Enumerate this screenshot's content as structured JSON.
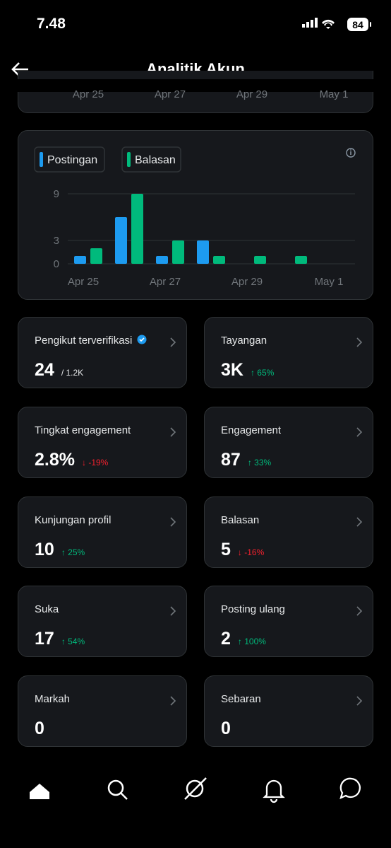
{
  "status_bar": {
    "time": "7.48",
    "battery": "84"
  },
  "header": {
    "title": "Analitik Akun"
  },
  "top_card": {
    "labels": [
      "Apr 25",
      "Apr 27",
      "Apr 29",
      "May 1"
    ]
  },
  "chart_data": {
    "type": "bar",
    "categories": [
      "Apr 25",
      null,
      "Apr 27",
      null,
      "Apr 29",
      null,
      "May 1"
    ],
    "series": [
      {
        "name": "Postingan",
        "color": "#1d9bf0",
        "values": [
          1,
          6,
          1,
          3,
          0,
          0,
          0
        ]
      },
      {
        "name": "Balasan",
        "color": "#00ba7c",
        "values": [
          2,
          9,
          3,
          1,
          1,
          1,
          0
        ]
      }
    ],
    "ylim": [
      0,
      9
    ],
    "yticks": [
      0,
      3,
      9
    ],
    "grid": true
  },
  "metrics": [
    {
      "label": "Pengikut terverifikasi",
      "value": "24",
      "extra": "/ 1.2K"
    },
    {
      "label": "Tayangan",
      "value": "3K",
      "change": "↑ 65%",
      "trend": "up"
    },
    {
      "label": "Tingkat engagement",
      "value": "2.8%",
      "change": "↓ -19%",
      "trend": "down"
    },
    {
      "label": "Engagement",
      "value": "87",
      "change": "↑ 33%",
      "trend": "up"
    },
    {
      "label": "Kunjungan profil",
      "value": "10",
      "change": "↑ 25%",
      "trend": "up"
    },
    {
      "label": "Balasan",
      "value": "5",
      "change": "↓ -16%",
      "trend": "down"
    },
    {
      "label": "Suka",
      "value": "17",
      "change": "↑ 54%",
      "trend": "up"
    },
    {
      "label": "Posting ulang",
      "value": "2",
      "change": "↑ 100%",
      "trend": "up"
    },
    {
      "label": "Markah",
      "value": "0"
    },
    {
      "label": "Sebaran",
      "value": "0"
    }
  ]
}
